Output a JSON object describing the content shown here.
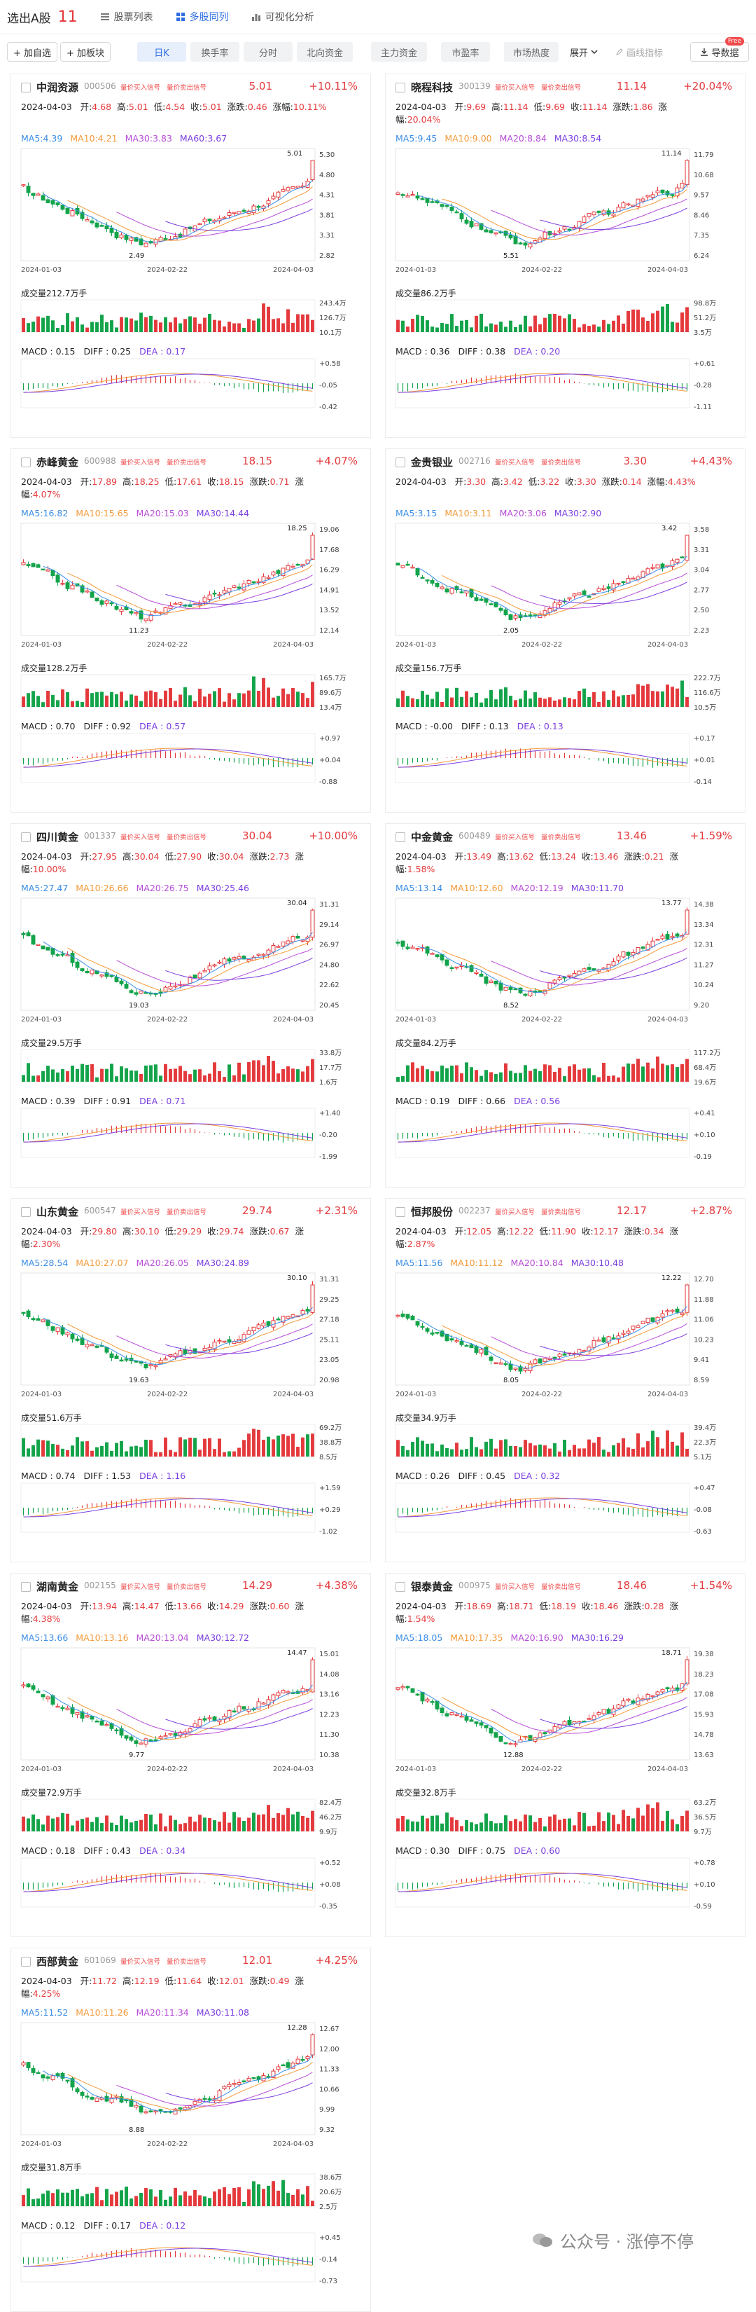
{
  "topbar": {
    "title": "选出A股",
    "count": "11",
    "nav": [
      "股票列表",
      "多股同列",
      "可视化分析"
    ]
  },
  "toolbar": {
    "add_self": "+ 加自选",
    "add_board": "+ 加板块",
    "tabs": [
      "日K",
      "换手率",
      "分时",
      "北向资金",
      "主力资金",
      "市盈率",
      "市场热度"
    ],
    "expand": "展开",
    "draw_indicator": "画线指标",
    "export": "导数据",
    "free_badge": "Free"
  },
  "common": {
    "signal_buy": "量价买入信号",
    "signal_sell": "量价卖出信号",
    "x_labels": [
      "2024-01-03",
      "2024-02-22",
      "2024-04-03"
    ]
  },
  "colors": {
    "up": "#e4393c",
    "down": "#13a34a",
    "ma5": "#3b8ee5",
    "ma10": "#f39a3a",
    "ma20": "#b84dd8",
    "ma30": "#7b3fe0",
    "ma60": "#3b74e0"
  },
  "stocks": [
    {
      "name": "中润资源",
      "code": "000506",
      "price": "5.01",
      "pct": "+10.11%",
      "date": "2024-04-03",
      "open": "4.68",
      "high": "5.01",
      "low": "4.54",
      "close": "5.01",
      "chg": "0.46",
      "amp": "10.11%",
      "ma_labels": [
        "MA5:4.39",
        "MA10:4.21",
        "MA30:3.83",
        "MA60:3.67"
      ],
      "y_ticks": [
        "5.30",
        "4.80",
        "4.31",
        "3.81",
        "3.31",
        "2.82"
      ],
      "hi_label": "5.01",
      "lo_label": "2.49",
      "volume": "成交量212.7万手",
      "vol_ticks": [
        "243.4万",
        "126.7万",
        "10.1万"
      ],
      "macd": "MACD : 0.15",
      "diff": "DIFF : 0.25",
      "dea": "DEA : 0.17",
      "macd_ticks": [
        "+0.58",
        "-0.05",
        "-0.42"
      ]
    },
    {
      "name": "晓程科技",
      "code": "300139",
      "price": "11.14",
      "pct": "+20.04%",
      "date": "2024-04-03",
      "open": "9.69",
      "high": "11.14",
      "low": "9.69",
      "close": "11.14",
      "chg": "1.86",
      "amp": "20.04%",
      "ma_labels": [
        "MA5:9.45",
        "MA10:9.00",
        "MA20:8.84",
        "MA30:8.54"
      ],
      "y_ticks": [
        "11.79",
        "10.68",
        "9.57",
        "8.46",
        "7.35",
        "6.24"
      ],
      "hi_label": "11.14",
      "lo_label": "5.51",
      "volume": "成交量86.2万手",
      "vol_ticks": [
        "98.8万",
        "51.2万",
        "3.5万"
      ],
      "macd": "MACD : 0.36",
      "diff": "DIFF : 0.38",
      "dea": "DEA : 0.20",
      "macd_ticks": [
        "+0.61",
        "-0.28",
        "-1.11"
      ]
    },
    {
      "name": "赤峰黄金",
      "code": "600988",
      "price": "18.15",
      "pct": "+4.07%",
      "date": "2024-04-03",
      "open": "17.89",
      "high": "18.25",
      "low": "17.61",
      "close": "18.15",
      "chg": "0.71",
      "amp": "4.07%",
      "ma_labels": [
        "MA5:16.82",
        "MA10:15.65",
        "MA20:15.03",
        "MA30:14.44"
      ],
      "y_ticks": [
        "19.06",
        "17.68",
        "16.29",
        "14.91",
        "13.52",
        "12.14"
      ],
      "hi_label": "18.25",
      "lo_label": "11.23",
      "volume": "成交量128.2万手",
      "vol_ticks": [
        "165.7万",
        "89.6万",
        "13.4万"
      ],
      "macd": "MACD : 0.70",
      "diff": "DIFF : 0.92",
      "dea": "DEA : 0.57",
      "macd_ticks": [
        "+0.97",
        "+0.04",
        "-0.88"
      ]
    },
    {
      "name": "金贵银业",
      "code": "002716",
      "price": "3.30",
      "pct": "+4.43%",
      "date": "2024-04-03",
      "open": "3.30",
      "high": "3.42",
      "low": "3.22",
      "close": "3.30",
      "chg": "0.14",
      "amp": "4.43%",
      "ma_labels": [
        "MA5:3.15",
        "MA10:3.11",
        "MA20:3.06",
        "MA30:2.90"
      ],
      "y_ticks": [
        "3.58",
        "3.31",
        "3.04",
        "2.77",
        "2.50",
        "2.23"
      ],
      "hi_label": "3.42",
      "lo_label": "2.05",
      "volume": "成交量156.7万手",
      "vol_ticks": [
        "222.7万",
        "116.6万",
        "10.5万"
      ],
      "macd": "MACD : -0.00",
      "diff": "DIFF : 0.13",
      "dea": "DEA : 0.13",
      "macd_ticks": [
        "+0.17",
        "+0.01",
        "-0.14"
      ]
    },
    {
      "name": "四川黄金",
      "code": "001337",
      "price": "30.04",
      "pct": "+10.00%",
      "date": "2024-04-03",
      "open": "27.95",
      "high": "30.04",
      "low": "27.90",
      "close": "30.04",
      "chg": "2.73",
      "amp": "10.00%",
      "ma_labels": [
        "MA5:27.47",
        "MA10:26.66",
        "MA20:26.75",
        "MA30:25.46"
      ],
      "y_ticks": [
        "31.31",
        "29.14",
        "26.97",
        "24.80",
        "22.62",
        "20.45"
      ],
      "hi_label": "30.04",
      "lo_label": "19.03",
      "volume": "成交量29.5万手",
      "vol_ticks": [
        "33.8万",
        "17.7万",
        "1.6万"
      ],
      "macd": "MACD : 0.39",
      "diff": "DIFF : 0.91",
      "dea": "DEA : 0.71",
      "macd_ticks": [
        "+1.40",
        "-0.20",
        "-1.99"
      ]
    },
    {
      "name": "中金黄金",
      "code": "600489",
      "price": "13.46",
      "pct": "+1.59%",
      "date": "2024-04-03",
      "open": "13.49",
      "high": "13.62",
      "low": "13.24",
      "close": "13.46",
      "chg": "0.21",
      "amp": "1.58%",
      "ma_labels": [
        "MA5:13.14",
        "MA10:12.60",
        "MA20:12.19",
        "MA30:11.70"
      ],
      "y_ticks": [
        "14.38",
        "13.34",
        "12.31",
        "11.27",
        "10.24",
        "9.20"
      ],
      "hi_label": "13.77",
      "lo_label": "8.52",
      "volume": "成交量84.2万手",
      "vol_ticks": [
        "117.2万",
        "68.4万",
        "19.6万"
      ],
      "macd": "MACD : 0.19",
      "diff": "DIFF : 0.66",
      "dea": "DEA : 0.56",
      "macd_ticks": [
        "+0.41",
        "+0.10",
        "-0.19"
      ]
    },
    {
      "name": "山东黄金",
      "code": "600547",
      "price": "29.74",
      "pct": "+2.31%",
      "date": "2024-04-03",
      "open": "29.80",
      "high": "30.10",
      "low": "29.29",
      "close": "29.74",
      "chg": "0.67",
      "amp": "2.30%",
      "ma_labels": [
        "MA5:28.54",
        "MA10:27.07",
        "MA20:26.05",
        "MA30:24.89"
      ],
      "y_ticks": [
        "31.31",
        "29.25",
        "27.18",
        "25.11",
        "23.05",
        "20.98"
      ],
      "hi_label": "30.10",
      "lo_label": "19.63",
      "volume": "成交量51.6万手",
      "vol_ticks": [
        "69.2万",
        "38.8万",
        "8.5万"
      ],
      "macd": "MACD : 0.74",
      "diff": "DIFF : 1.53",
      "dea": "DEA : 1.16",
      "macd_ticks": [
        "+1.59",
        "+0.29",
        "-1.02"
      ]
    },
    {
      "name": "恒邦股份",
      "code": "002237",
      "price": "12.17",
      "pct": "+2.87%",
      "date": "2024-04-03",
      "open": "12.05",
      "high": "12.22",
      "low": "11.90",
      "close": "12.17",
      "chg": "0.34",
      "amp": "2.87%",
      "ma_labels": [
        "MA5:11.56",
        "MA10:11.12",
        "MA20:10.84",
        "MA30:10.48"
      ],
      "y_ticks": [
        "12.70",
        "11.88",
        "11.06",
        "10.23",
        "9.41",
        "8.59"
      ],
      "hi_label": "12.22",
      "lo_label": "8.05",
      "volume": "成交量34.9万手",
      "vol_ticks": [
        "39.4万",
        "22.3万",
        "5.1万"
      ],
      "macd": "MACD : 0.26",
      "diff": "DIFF : 0.45",
      "dea": "DEA : 0.32",
      "macd_ticks": [
        "+0.47",
        "-0.08",
        "-0.63"
      ]
    },
    {
      "name": "湖南黄金",
      "code": "002155",
      "price": "14.29",
      "pct": "+4.38%",
      "date": "2024-04-03",
      "open": "13.94",
      "high": "14.47",
      "low": "13.66",
      "close": "14.29",
      "chg": "0.60",
      "amp": "4.38%",
      "ma_labels": [
        "MA5:13.66",
        "MA10:13.16",
        "MA20:13.04",
        "MA30:12.72"
      ],
      "y_ticks": [
        "15.01",
        "14.08",
        "13.16",
        "12.23",
        "11.30",
        "10.38"
      ],
      "hi_label": "14.47",
      "lo_label": "9.77",
      "volume": "成交量72.9万手",
      "vol_ticks": [
        "82.4万",
        "46.2万",
        "9.9万"
      ],
      "macd": "MACD : 0.18",
      "diff": "DIFF : 0.43",
      "dea": "DEA : 0.34",
      "macd_ticks": [
        "+0.52",
        "+0.08",
        "-0.35"
      ]
    },
    {
      "name": "银泰黄金",
      "code": "000975",
      "price": "18.46",
      "pct": "+1.54%",
      "date": "2024-04-03",
      "open": "18.69",
      "high": "18.71",
      "low": "18.19",
      "close": "18.46",
      "chg": "0.28",
      "amp": "1.54%",
      "ma_labels": [
        "MA5:18.05",
        "MA10:17.35",
        "MA20:16.90",
        "MA30:16.29"
      ],
      "y_ticks": [
        "19.38",
        "18.23",
        "17.08",
        "15.93",
        "14.78",
        "13.63"
      ],
      "hi_label": "18.71",
      "lo_label": "12.88",
      "volume": "成交量32.8万手",
      "vol_ticks": [
        "63.2万",
        "36.5万",
        "9.7万"
      ],
      "macd": "MACD : 0.30",
      "diff": "DIFF : 0.75",
      "dea": "DEA : 0.60",
      "macd_ticks": [
        "+0.78",
        "+0.10",
        "-0.59"
      ]
    },
    {
      "name": "西部黄金",
      "code": "601069",
      "price": "12.01",
      "pct": "+4.25%",
      "date": "2024-04-03",
      "open": "11.72",
      "high": "12.19",
      "low": "11.64",
      "close": "12.01",
      "chg": "0.49",
      "amp": "4.25%",
      "ma_labels": [
        "MA5:11.52",
        "MA10:11.26",
        "MA20:11.34",
        "MA30:11.08"
      ],
      "y_ticks": [
        "12.67",
        "12.00",
        "11.33",
        "10.66",
        "9.99",
        "9.32"
      ],
      "hi_label": "12.28",
      "lo_label": "8.88",
      "volume": "成交量31.8万手",
      "vol_ticks": [
        "38.6万",
        "20.6万",
        "2.5万"
      ],
      "macd": "MACD : 0.12",
      "diff": "DIFF : 0.17",
      "dea": "DEA : 0.12",
      "macd_ticks": [
        "+0.45",
        "-0.14",
        "-0.73"
      ]
    }
  ],
  "watermark": "公众号 · 涨停不停"
}
